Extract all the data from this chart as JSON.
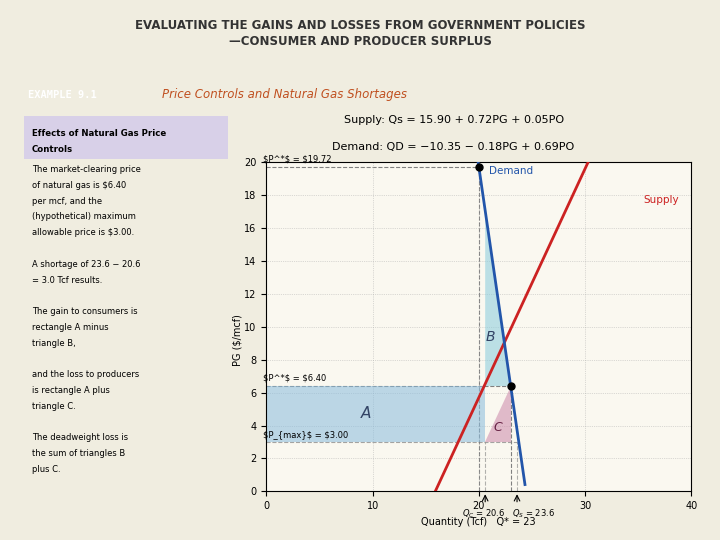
{
  "title_line1": "EVALUATING THE GAINS AND LOSSES FROM GOVERNMENT POLICIES",
  "title_line2": "—CONSUMER AND PRODUCER SURPLUS",
  "example_label": "EXAMPLE 9.1",
  "example_title": "Price Controls and Natural Gas Shortages",
  "supply_eq": "Supply: Qs = 15.90 + 0.72PG + 0.05PO",
  "demand_eq": "Demand: QD = −10.35 − 0.18PG + 0.69PO",
  "bg_outer": "#f0ede0",
  "bg_inner": "#faf8f0",
  "example_box_color": "#c8a070",
  "example_title_color": "#c05020",
  "text_panel_bg": "#d8d0e8",
  "supply_line_color": "#cc2222",
  "demand_line_color": "#2255aa",
  "area_A_color": "#88bbdd",
  "area_B_color": "#88ccdd",
  "area_C_color": "#cc88aa",
  "p_market": 6.4,
  "p_max": 3.0,
  "p_high": 19.72,
  "q_high": 20.0,
  "q_market": 23.0,
  "q_demand_at_pmax": 20.6,
  "q_supply_at_pmax": 23.6,
  "xlim": [
    0,
    40
  ],
  "ylim": [
    0,
    20
  ],
  "xlabel": "Quantity (Tcf)   Q* = 23",
  "ylabel": "PG ($/mcf)",
  "yticks": [
    0,
    2,
    4,
    6,
    8,
    10,
    12,
    14,
    16,
    18,
    20
  ],
  "xticks": [
    0,
    10,
    20,
    30,
    40
  ],
  "panel_text_lines": [
    "Effects of Natural Gas Price",
    "Controls",
    "The market-clearing price",
    "of natural gas is $6.40",
    "per mcf, and the",
    "(hypothetical) maximum",
    "allowable price is $3.00.",
    "",
    "A shortage of 23.6 − 20.6",
    "= 3.0 Tcf results.",
    "",
    "The gain to consumers is",
    "rectangle A minus",
    "triangle B,",
    "",
    "and the loss to producers",
    "is rectangle A plus",
    "triangle C.",
    "",
    "The deadweight loss is",
    "the sum of triangles B",
    "plus C."
  ]
}
